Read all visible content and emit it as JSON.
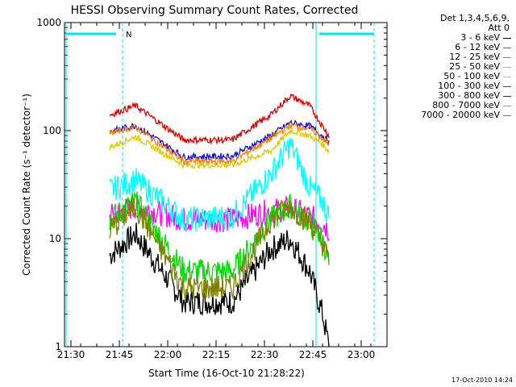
{
  "chart_data": {
    "type": "line",
    "title": "HESSI Observing Summary Count Rates, Corrected",
    "ylabel": "Corrected Count Rate (s⁻¹ detector⁻¹)",
    "xlabel": "Start Time (16-Oct-10 21:28:22)",
    "y_scale": "log",
    "ylim": [
      1,
      1000
    ],
    "xlim": [
      "21:28",
      "23:08"
    ],
    "y_ticks": [
      "1",
      "10",
      "100",
      "1000"
    ],
    "x_ticks": [
      "21:30",
      "21:45",
      "22:00",
      "22:15",
      "22:30",
      "22:45",
      "23:00"
    ],
    "detector_info": [
      "Det 1,3,4,5,6,9,",
      "Att 0"
    ],
    "timestamp": "17-Oct-2010 14:24",
    "night_label": "N",
    "colors": {
      "axis": "#000000",
      "markers": "#00e5ee"
    },
    "x": [
      "21:42",
      "21:50",
      "22:05",
      "22:20",
      "22:32",
      "22:38",
      "22:44",
      "22:48",
      "22:50"
    ],
    "series": [
      {
        "name": "3 - 6 keV",
        "color": "#000000",
        "values": [
          7,
          11,
          2.6,
          2.6,
          8,
          10,
          5,
          2,
          1
        ]
      },
      {
        "name": "6 - 12 keV",
        "color": "#ff00ff",
        "values": [
          16,
          20,
          15,
          15,
          18,
          19,
          16,
          14,
          12
        ]
      },
      {
        "name": "12 - 25 keV",
        "color": "#00e000",
        "values": [
          15,
          22,
          5,
          5,
          15,
          20,
          14,
          10,
          6
        ]
      },
      {
        "name": "25 - 50 keV",
        "color": "#00ffff",
        "values": [
          28,
          35,
          15,
          16,
          40,
          75,
          30,
          22,
          16
        ]
      },
      {
        "name": "50 - 100 keV",
        "color": "#e0c800",
        "values": [
          70,
          88,
          48,
          48,
          65,
          100,
          90,
          75,
          65
        ]
      },
      {
        "name": "100 - 300 keV",
        "color": "#e00000",
        "values": [
          140,
          170,
          82,
          82,
          140,
          210,
          170,
          110,
          90
        ]
      },
      {
        "name": "300 - 800 keV",
        "color": "#1010e0",
        "values": [
          98,
          112,
          57,
          58,
          90,
          118,
          110,
          90,
          78
        ]
      },
      {
        "name": "800 - 7000 keV",
        "color": "#ff7f00",
        "values": [
          95,
          108,
          52,
          52,
          85,
          112,
          105,
          85,
          74
        ]
      },
      {
        "name": "7000 - 20000 keV",
        "color": "#808000",
        "values": [
          12,
          20,
          3.5,
          3.5,
          15,
          20,
          14,
          9,
          6
        ]
      }
    ]
  }
}
